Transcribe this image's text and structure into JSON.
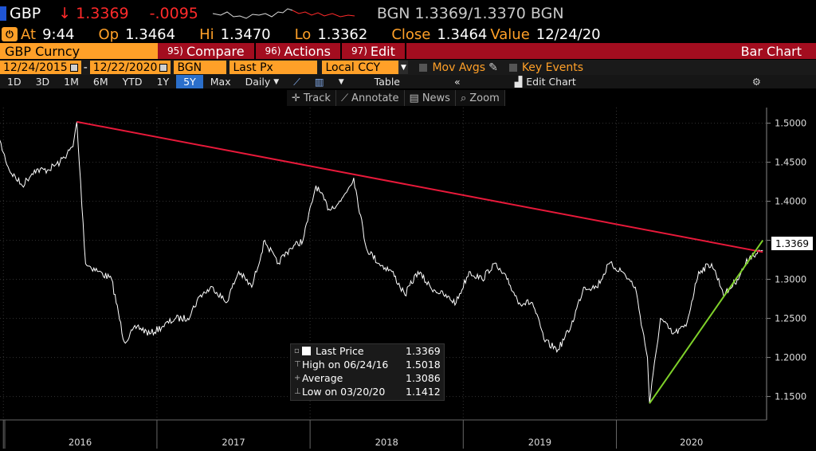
{
  "header": {
    "ticker": "GBP",
    "arrow": "↓",
    "last": "1.3369",
    "change": "-.0095",
    "source": "BGN",
    "bid_ask": "1.3369/1.3370",
    "source2": "BGN"
  },
  "quote": {
    "at_label": "At",
    "time": "9:44",
    "op_label": "Op",
    "open": "1.3464",
    "hi_label": "Hi",
    "high": "1.3470",
    "lo_label": "Lo",
    "low": "1.3362",
    "close_label": "Close",
    "close": "1.3464",
    "value_label": "Value",
    "value_date": "12/24/20"
  },
  "menubar": {
    "security": "GBP Curncy",
    "items": [
      {
        "num": "95)",
        "label": "Compare"
      },
      {
        "num": "96)",
        "label": "Actions"
      },
      {
        "num": "97)",
        "label": "Edit"
      }
    ],
    "chart_type": "Bar Chart"
  },
  "params": {
    "start": "12/24/2015",
    "dash": "-",
    "end": "12/22/2020",
    "source": "BGN",
    "field": "Last Px",
    "ccy": "Local CCY",
    "mov_avgs": "Mov Avgs",
    "key_events": "Key Events"
  },
  "toolbar": {
    "ranges": [
      "1D",
      "3D",
      "1M",
      "6M",
      "YTD",
      "1Y",
      "5Y",
      "Max"
    ],
    "active": "5Y",
    "freq": "Daily",
    "table": "Table",
    "edit_chart": "Edit Chart"
  },
  "tools": [
    "Track",
    "Annotate",
    "News",
    "Zoom"
  ],
  "colors": {
    "orange": "#ffa028",
    "red_bar": "#a30d1f",
    "trend_red": "#e8193a",
    "trend_green": "#7fd12a",
    "active_blue": "#2b6fcb"
  },
  "legend": [
    {
      "label": "Last Price",
      "value": "1.3369"
    },
    {
      "label": "High on 06/24/16",
      "value": "1.5018"
    },
    {
      "label": "Average",
      "value": "1.3086"
    },
    {
      "label": "Low on 03/20/20",
      "value": "1.1412"
    }
  ],
  "price_tag": "1.3369",
  "chart_data": {
    "type": "line",
    "x": [
      "2015-12",
      "2016-01",
      "2016-02",
      "2016-03",
      "2016-04",
      "2016-05",
      "2016-06",
      "2016-06-24",
      "2016-07",
      "2016-08",
      "2016-09",
      "2016-10",
      "2016-11",
      "2016-12",
      "2017-01",
      "2017-02",
      "2017-03",
      "2017-04",
      "2017-05",
      "2017-06",
      "2017-07",
      "2017-08",
      "2017-09",
      "2017-10",
      "2017-11",
      "2017-12",
      "2018-01",
      "2018-02",
      "2018-03",
      "2018-04",
      "2018-05",
      "2018-06",
      "2018-07",
      "2018-08",
      "2018-09",
      "2018-10",
      "2018-11",
      "2018-12",
      "2019-01",
      "2019-02",
      "2019-03",
      "2019-04",
      "2019-05",
      "2019-06",
      "2019-07",
      "2019-08",
      "2019-09",
      "2019-10",
      "2019-11",
      "2019-12",
      "2020-01",
      "2020-02",
      "2020-03",
      "2020-03-20",
      "2020-04",
      "2020-05",
      "2020-06",
      "2020-07",
      "2020-08",
      "2020-09",
      "2020-10",
      "2020-11",
      "2020-12"
    ],
    "y": [
      1.49,
      1.44,
      1.42,
      1.44,
      1.44,
      1.45,
      1.47,
      1.5018,
      1.32,
      1.31,
      1.3,
      1.22,
      1.24,
      1.23,
      1.24,
      1.25,
      1.25,
      1.28,
      1.29,
      1.27,
      1.31,
      1.29,
      1.35,
      1.32,
      1.34,
      1.35,
      1.42,
      1.39,
      1.4,
      1.43,
      1.34,
      1.32,
      1.31,
      1.28,
      1.31,
      1.29,
      1.28,
      1.27,
      1.31,
      1.3,
      1.32,
      1.3,
      1.27,
      1.27,
      1.22,
      1.21,
      1.24,
      1.29,
      1.29,
      1.32,
      1.31,
      1.29,
      1.2,
      1.1412,
      1.25,
      1.23,
      1.24,
      1.31,
      1.32,
      1.28,
      1.3,
      1.33,
      1.3369
    ],
    "x_ticks": [
      "2016",
      "2017",
      "2018",
      "2019",
      "2020"
    ],
    "y_ticks": [
      "1.5000",
      "1.4500",
      "1.4000",
      "1.3500",
      "1.3000",
      "1.2500",
      "1.2000",
      "1.1500"
    ],
    "ylim": [
      1.12,
      1.52
    ],
    "trendlines": [
      {
        "color": "red",
        "from": [
          "2016-06-24",
          1.5018
        ],
        "to": [
          "2020-12",
          1.335
        ]
      },
      {
        "color": "green",
        "from": [
          "2020-03-20",
          1.1412
        ],
        "to": [
          "2020-12",
          1.35
        ]
      }
    ],
    "grid": true
  }
}
